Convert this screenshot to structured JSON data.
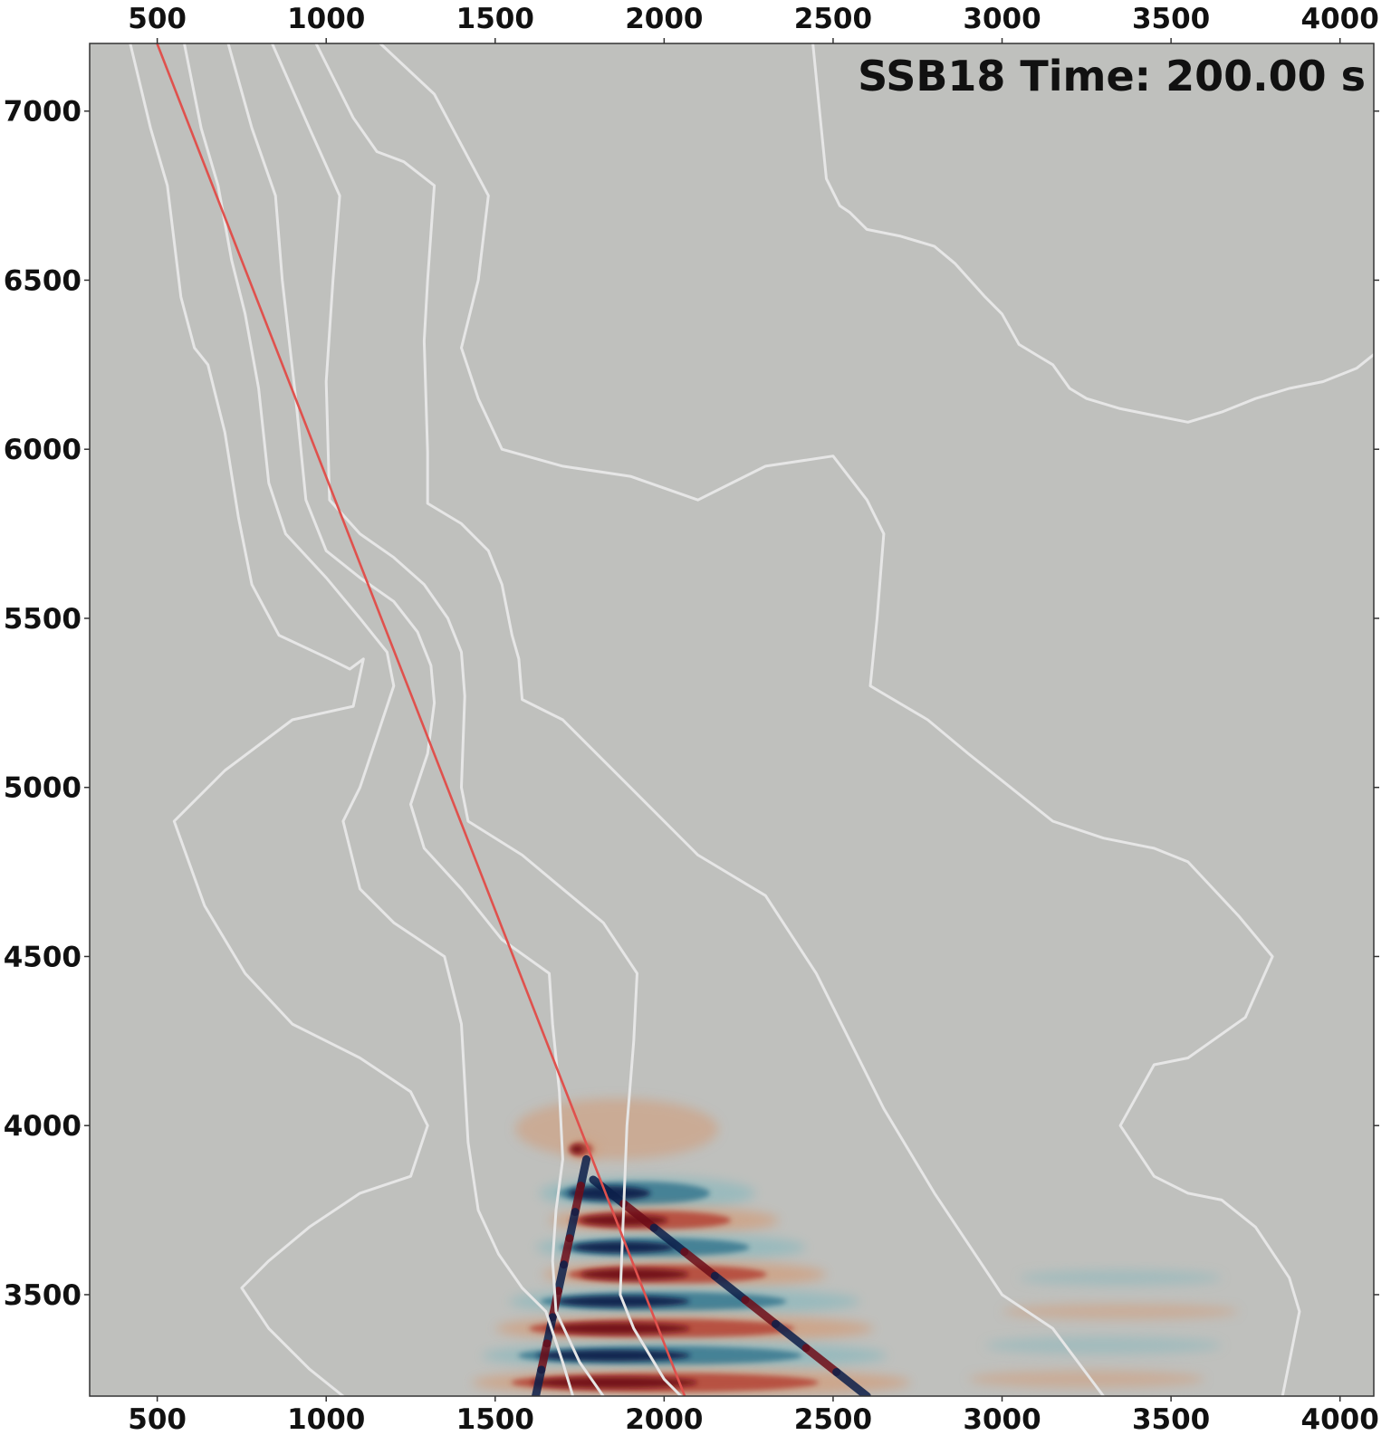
{
  "chart_data": {
    "type": "heatmap",
    "title": "SSB18 Time: 200.00 s",
    "xlabel": "",
    "ylabel": "",
    "xlim": [
      300,
      4100
    ],
    "ylim": [
      3200,
      7200
    ],
    "x_ticks": [
      500,
      1000,
      1500,
      2000,
      2500,
      3000,
      3500,
      4000
    ],
    "y_ticks": [
      3500,
      4000,
      4500,
      5000,
      5500,
      6000,
      6500,
      7000
    ],
    "grid": false,
    "colors": {
      "background": "#bfc0bd",
      "contour": "#e6e6e6",
      "path": "#e0514d",
      "positive_strong": "#6e0d18",
      "positive_mid": "#b54a3a",
      "positive_weak": "#cfa284",
      "negative_strong": "#0c1f4a",
      "negative_mid": "#3d7c92",
      "negative_weak": "#93b9bd"
    },
    "path_line": [
      [
        480,
        7250
      ],
      [
        2100,
        3100
      ]
    ],
    "contours": [
      [
        [
          420,
          7200
        ],
        [
          480,
          6950
        ],
        [
          530,
          6780
        ],
        [
          570,
          6450
        ],
        [
          610,
          6300
        ],
        [
          650,
          6250
        ],
        [
          700,
          6050
        ],
        [
          740,
          5800
        ],
        [
          780,
          5600
        ],
        [
          860,
          5450
        ],
        [
          1010,
          5380
        ],
        [
          1070,
          5350
        ],
        [
          1110,
          5380
        ],
        [
          1080,
          5240
        ],
        [
          900,
          5200
        ],
        [
          700,
          5050
        ],
        [
          550,
          4900
        ],
        [
          640,
          4650
        ],
        [
          760,
          4450
        ],
        [
          900,
          4300
        ],
        [
          1100,
          4200
        ],
        [
          1250,
          4100
        ],
        [
          1300,
          4000
        ],
        [
          1250,
          3850
        ],
        [
          1100,
          3800
        ],
        [
          950,
          3700
        ],
        [
          830,
          3600
        ],
        [
          750,
          3520
        ],
        [
          830,
          3400
        ],
        [
          950,
          3280
        ],
        [
          1050,
          3200
        ]
      ],
      [
        [
          580,
          7200
        ],
        [
          630,
          6950
        ],
        [
          680,
          6780
        ],
        [
          720,
          6560
        ],
        [
          760,
          6400
        ],
        [
          800,
          6180
        ],
        [
          830,
          5900
        ],
        [
          880,
          5750
        ],
        [
          1000,
          5620
        ],
        [
          1100,
          5500
        ],
        [
          1180,
          5400
        ],
        [
          1200,
          5300
        ],
        [
          1150,
          5150
        ],
        [
          1100,
          5000
        ],
        [
          1050,
          4900
        ],
        [
          1100,
          4700
        ],
        [
          1200,
          4600
        ],
        [
          1350,
          4500
        ],
        [
          1400,
          4300
        ],
        [
          1420,
          3950
        ],
        [
          1450,
          3750
        ],
        [
          1510,
          3620
        ],
        [
          1580,
          3520
        ],
        [
          1650,
          3450
        ],
        [
          1700,
          3300
        ],
        [
          1730,
          3200
        ]
      ],
      [
        [
          710,
          7200
        ],
        [
          780,
          6950
        ],
        [
          850,
          6750
        ],
        [
          870,
          6500
        ],
        [
          910,
          6150
        ],
        [
          940,
          5850
        ],
        [
          1000,
          5700
        ],
        [
          1100,
          5620
        ],
        [
          1200,
          5550
        ],
        [
          1270,
          5460
        ],
        [
          1310,
          5360
        ],
        [
          1320,
          5250
        ],
        [
          1300,
          5100
        ],
        [
          1250,
          4950
        ],
        [
          1290,
          4820
        ],
        [
          1400,
          4700
        ],
        [
          1520,
          4550
        ],
        [
          1660,
          4450
        ],
        [
          1670,
          4300
        ],
        [
          1690,
          4100
        ],
        [
          1700,
          3900
        ],
        [
          1680,
          3750
        ],
        [
          1670,
          3600
        ],
        [
          1680,
          3450
        ],
        [
          1750,
          3300
        ],
        [
          1820,
          3200
        ]
      ],
      [
        [
          840,
          7200
        ],
        [
          950,
          6950
        ],
        [
          1040,
          6750
        ],
        [
          1020,
          6500
        ],
        [
          1000,
          6200
        ],
        [
          1010,
          5850
        ],
        [
          1100,
          5750
        ],
        [
          1200,
          5680
        ],
        [
          1290,
          5600
        ],
        [
          1360,
          5500
        ],
        [
          1400,
          5400
        ],
        [
          1410,
          5270
        ],
        [
          1400,
          5000
        ],
        [
          1420,
          4900
        ],
        [
          1580,
          4800
        ],
        [
          1700,
          4700
        ],
        [
          1820,
          4600
        ],
        [
          1920,
          4450
        ],
        [
          1910,
          4250
        ],
        [
          1890,
          4000
        ],
        [
          1880,
          3750
        ],
        [
          1870,
          3500
        ],
        [
          1910,
          3400
        ],
        [
          2000,
          3250
        ],
        [
          2050,
          3200
        ]
      ],
      [
        [
          970,
          7200
        ],
        [
          1080,
          6980
        ],
        [
          1150,
          6880
        ],
        [
          1230,
          6850
        ],
        [
          1320,
          6780
        ],
        [
          1300,
          6500
        ],
        [
          1290,
          6320
        ],
        [
          1300,
          5990
        ],
        [
          1300,
          5840
        ],
        [
          1400,
          5780
        ],
        [
          1480,
          5700
        ],
        [
          1520,
          5600
        ],
        [
          1550,
          5450
        ],
        [
          1570,
          5380
        ],
        [
          1580,
          5260
        ],
        [
          1700,
          5200
        ],
        [
          1900,
          5000
        ],
        [
          2100,
          4800
        ],
        [
          2300,
          4680
        ],
        [
          2450,
          4450
        ],
        [
          2550,
          4250
        ],
        [
          2650,
          4050
        ],
        [
          2800,
          3800
        ],
        [
          2900,
          3650
        ],
        [
          3000,
          3500
        ],
        [
          3150,
          3400
        ],
        [
          3300,
          3200
        ]
      ],
      [
        [
          1160,
          7200
        ],
        [
          1320,
          7050
        ],
        [
          1400,
          6900
        ],
        [
          1480,
          6750
        ],
        [
          1450,
          6500
        ],
        [
          1400,
          6300
        ],
        [
          1450,
          6150
        ],
        [
          1520,
          6000
        ],
        [
          1700,
          5950
        ],
        [
          1900,
          5920
        ],
        [
          2100,
          5850
        ],
        [
          2200,
          5900
        ],
        [
          2300,
          5950
        ],
        [
          2500,
          5980
        ],
        [
          2600,
          5850
        ],
        [
          2650,
          5750
        ],
        [
          2630,
          5500
        ],
        [
          2610,
          5300
        ],
        [
          2780,
          5200
        ],
        [
          2900,
          5100
        ],
        [
          3000,
          5020
        ],
        [
          3150,
          4900
        ],
        [
          3300,
          4850
        ],
        [
          3450,
          4820
        ],
        [
          3550,
          4780
        ],
        [
          3700,
          4620
        ],
        [
          3800,
          4500
        ],
        [
          3720,
          4320
        ],
        [
          3550,
          4200
        ],
        [
          3450,
          4180
        ],
        [
          3350,
          4000
        ],
        [
          3450,
          3850
        ],
        [
          3550,
          3800
        ],
        [
          3650,
          3780
        ],
        [
          3750,
          3700
        ],
        [
          3850,
          3550
        ],
        [
          3880,
          3450
        ],
        [
          3860,
          3350
        ],
        [
          3830,
          3200
        ]
      ],
      [
        [
          2440,
          7200
        ],
        [
          2460,
          7000
        ],
        [
          2480,
          6800
        ],
        [
          2520,
          6720
        ],
        [
          2550,
          6700
        ],
        [
          2600,
          6650
        ],
        [
          2700,
          6630
        ],
        [
          2800,
          6600
        ],
        [
          2860,
          6550
        ],
        [
          2950,
          6450
        ],
        [
          3000,
          6400
        ],
        [
          3050,
          6310
        ],
        [
          3100,
          6280
        ],
        [
          3150,
          6250
        ],
        [
          3200,
          6180
        ],
        [
          3250,
          6150
        ],
        [
          3350,
          6120
        ],
        [
          3450,
          6100
        ],
        [
          3550,
          6080
        ],
        [
          3650,
          6110
        ],
        [
          3750,
          6150
        ],
        [
          3850,
          6180
        ],
        [
          3950,
          6200
        ],
        [
          4050,
          6240
        ],
        [
          4100,
          6280
        ]
      ]
    ],
    "wavefield": {
      "apex": [
        1770,
        3910
      ],
      "bands": [
        {
          "sign": "positive",
          "x": 1860,
          "y": 3990,
          "extent_x": 300,
          "extent_y": 90,
          "intensity": 0.35
        },
        {
          "sign": "positive",
          "x": 1760,
          "y": 3930,
          "extent_x": 50,
          "extent_y": 30,
          "intensity": 0.7
        },
        {
          "sign": "negative",
          "x": 1950,
          "y": 3800,
          "extent_x": 320,
          "extent_y": 50,
          "intensity": 0.65
        },
        {
          "sign": "positive",
          "x": 2000,
          "y": 3720,
          "extent_x": 340,
          "extent_y": 40,
          "intensity": 0.7
        },
        {
          "sign": "negative",
          "x": 2020,
          "y": 3640,
          "extent_x": 400,
          "extent_y": 40,
          "intensity": 0.75
        },
        {
          "sign": "positive",
          "x": 2060,
          "y": 3560,
          "extent_x": 420,
          "extent_y": 40,
          "intensity": 0.75
        },
        {
          "sign": "negative",
          "x": 2060,
          "y": 3480,
          "extent_x": 520,
          "extent_y": 40,
          "intensity": 0.75
        },
        {
          "sign": "positive",
          "x": 2060,
          "y": 3400,
          "extent_x": 560,
          "extent_y": 40,
          "intensity": 0.8
        },
        {
          "sign": "negative",
          "x": 2060,
          "y": 3320,
          "extent_x": 600,
          "extent_y": 40,
          "intensity": 0.8
        },
        {
          "sign": "positive",
          "x": 2080,
          "y": 3240,
          "extent_x": 650,
          "extent_y": 40,
          "intensity": 0.8
        },
        {
          "sign": "negative",
          "x": 3350,
          "y": 3550,
          "extent_x": 300,
          "extent_y": 22,
          "intensity": 0.3
        },
        {
          "sign": "positive",
          "x": 3350,
          "y": 3450,
          "extent_x": 350,
          "extent_y": 22,
          "intensity": 0.3
        },
        {
          "sign": "negative",
          "x": 3300,
          "y": 3350,
          "extent_x": 350,
          "extent_y": 25,
          "intensity": 0.3
        },
        {
          "sign": "positive",
          "x": 3250,
          "y": 3250,
          "extent_x": 350,
          "extent_y": 25,
          "intensity": 0.3
        }
      ],
      "diagonal_fronts": [
        {
          "from": [
            1770,
            3900
          ],
          "to": [
            1620,
            3200
          ]
        },
        {
          "from": [
            1790,
            3840
          ],
          "to": [
            2600,
            3200
          ]
        }
      ]
    }
  }
}
